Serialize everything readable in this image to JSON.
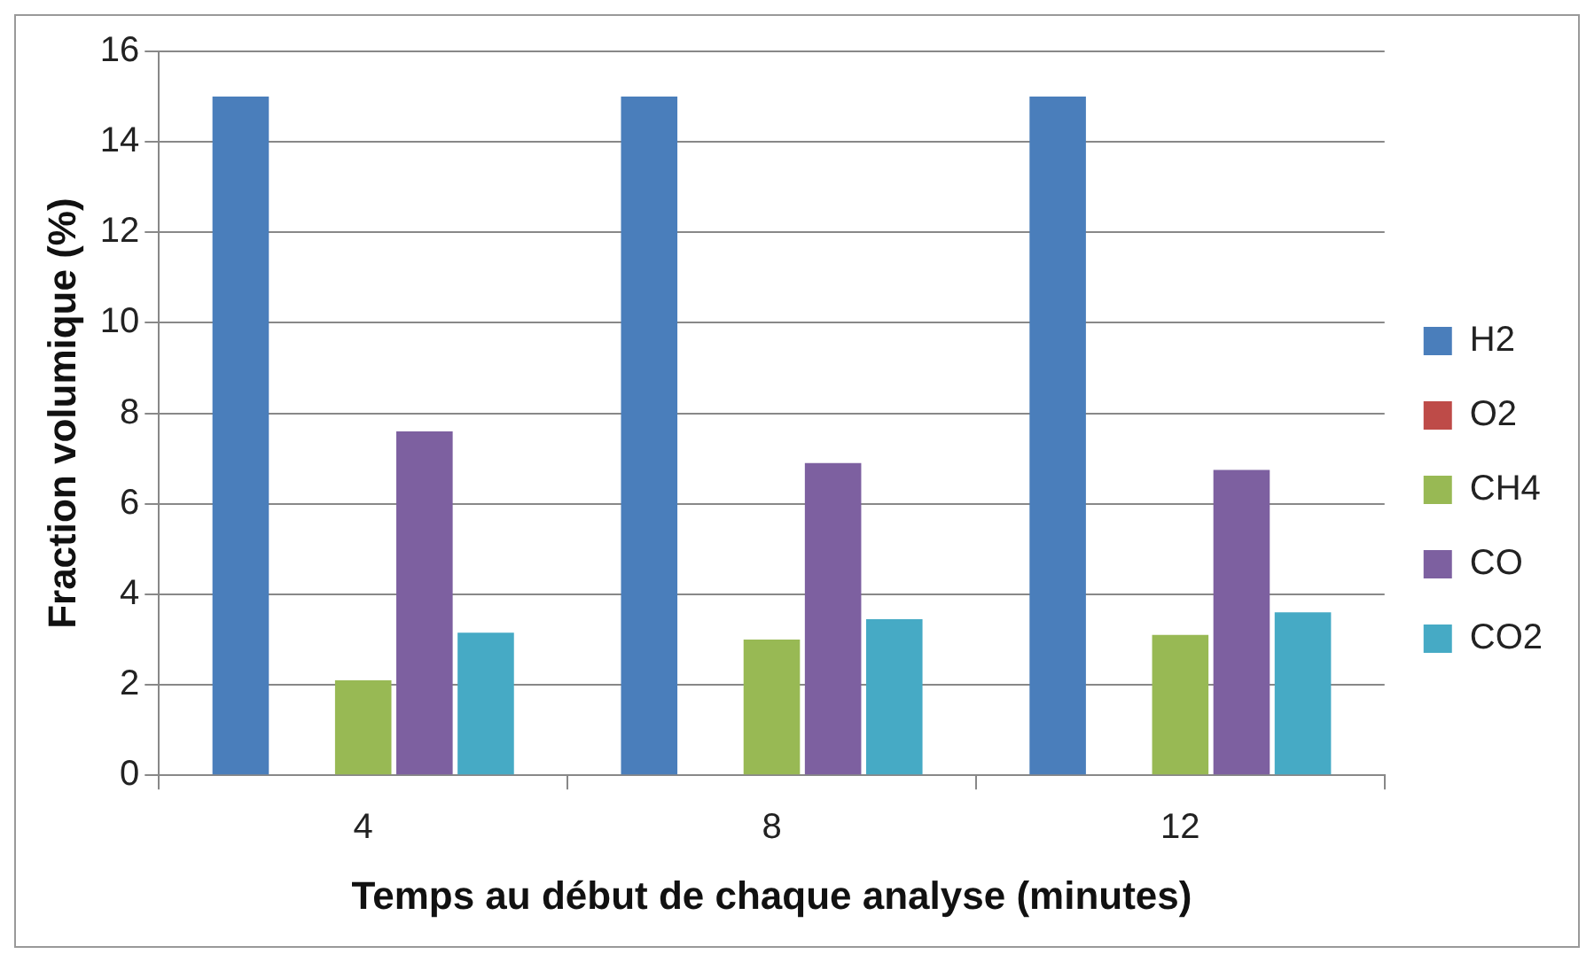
{
  "chart_data": {
    "type": "bar",
    "xlabel": "Temps au début de chaque analyse (minutes)",
    "ylabel": "Fraction volumique (%)",
    "categories": [
      "4",
      "8",
      "12"
    ],
    "series": [
      {
        "name": "H2",
        "color": "#4a7ebb",
        "values": [
          15,
          15,
          15
        ]
      },
      {
        "name": "O2",
        "color": "#be4b48",
        "values": [
          0,
          0,
          0
        ]
      },
      {
        "name": "CH4",
        "color": "#98b954",
        "values": [
          2.1,
          3.0,
          3.1
        ]
      },
      {
        "name": "CO",
        "color": "#7d60a0",
        "values": [
          7.6,
          6.9,
          6.75
        ]
      },
      {
        "name": "CO2",
        "color": "#46aac5",
        "values": [
          3.15,
          3.45,
          3.6
        ]
      }
    ],
    "ylim": [
      0,
      16
    ],
    "yticks": [
      0,
      2,
      4,
      6,
      8,
      10,
      12,
      14,
      16
    ],
    "grid": "y",
    "legend": "right"
  }
}
